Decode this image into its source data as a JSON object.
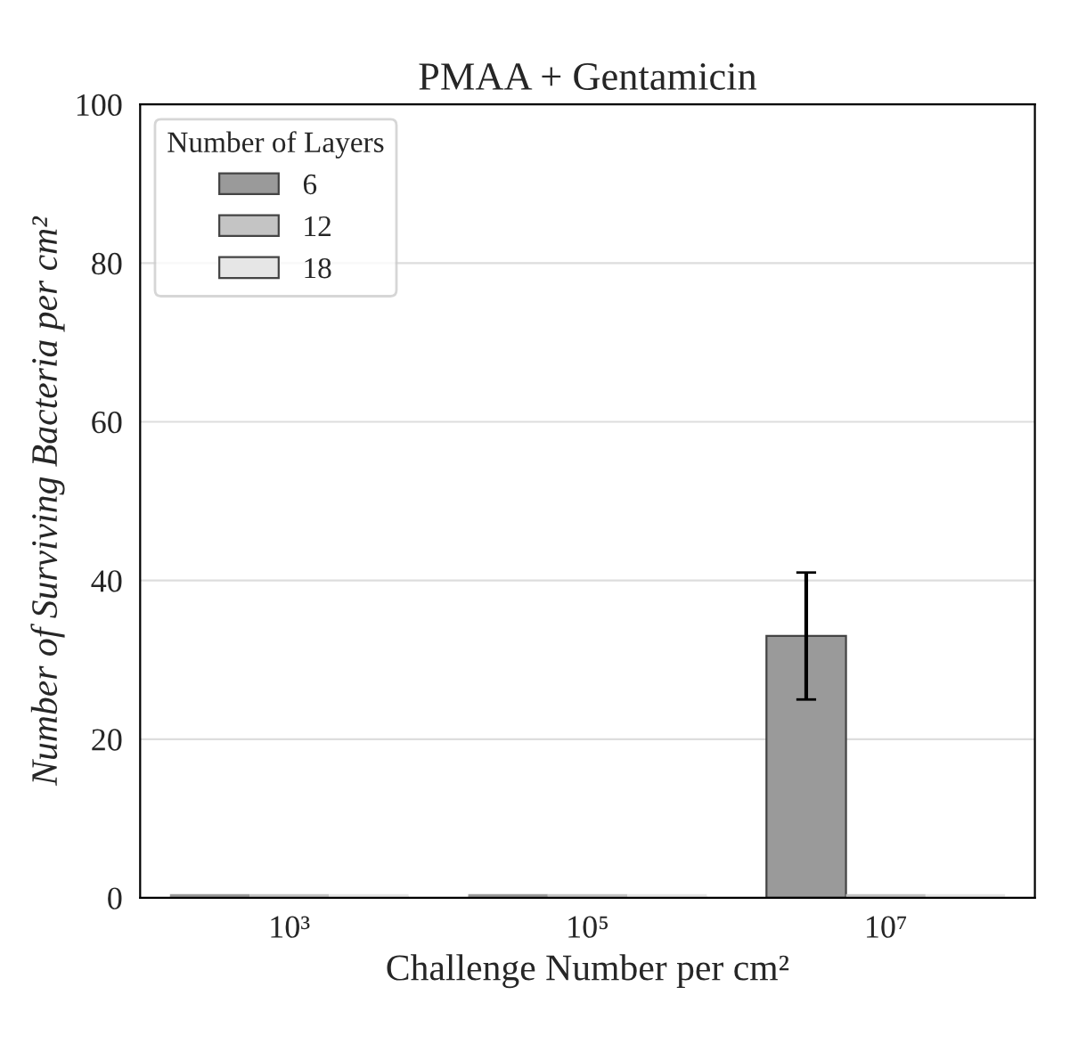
{
  "chart_data": {
    "type": "bar",
    "title": "PMAA + Gentamicin",
    "xlabel": "Challenge Number per cm²",
    "ylabel": "Number of Surviving Bacteria per cm²",
    "legend_title": "Number of Layers",
    "categories": [
      "10³",
      "10⁵",
      "10⁷"
    ],
    "series": [
      {
        "name": "6",
        "color": "#9a9a9a",
        "values": [
          0,
          0,
          33
        ],
        "errors": [
          null,
          null,
          8
        ]
      },
      {
        "name": "12",
        "color": "#c4c4c4",
        "values": [
          0,
          0,
          0
        ]
      },
      {
        "name": "18",
        "color": "#e6e6e6",
        "values": [
          0,
          0,
          0
        ]
      }
    ],
    "ylim": [
      0,
      100
    ],
    "yticks": [
      0,
      20,
      40,
      60,
      80,
      100
    ],
    "grid": "y",
    "legend": "top left"
  }
}
